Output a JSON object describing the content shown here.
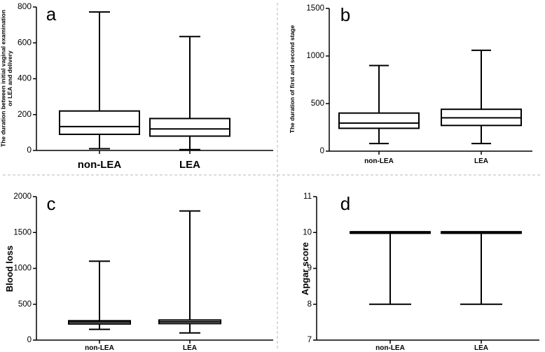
{
  "chart_data": [
    {
      "panel": "a",
      "type": "box",
      "ylabel": "The duration between initial vaginal examination or LEA and delivery",
      "ylabel_lines": [
        "The duration between initial vaginal examination",
        "or LEA and delivery"
      ],
      "ylim": [
        0,
        800
      ],
      "yticks": [
        0,
        200,
        400,
        600,
        800
      ],
      "categories": [
        "non-LEA",
        "LEA"
      ],
      "boxes": [
        {
          "name": "non-LEA",
          "min": 10,
          "q1": 90,
          "median": 133,
          "q3": 220,
          "max": 772
        },
        {
          "name": "LEA",
          "min": 5,
          "q1": 80,
          "median": 120,
          "q3": 178,
          "max": 635
        }
      ]
    },
    {
      "panel": "b",
      "type": "box",
      "ylabel": "The duration of first and second stage",
      "ylabel_lines": [
        "The duration of first and second stage"
      ],
      "ylim": [
        0,
        1500
      ],
      "yticks": [
        0,
        500,
        1000,
        1500
      ],
      "categories": [
        "non-LEA",
        "LEA"
      ],
      "boxes": [
        {
          "name": "non-LEA",
          "min": 80,
          "q1": 240,
          "median": 295,
          "q3": 400,
          "max": 900
        },
        {
          "name": "LEA",
          "min": 80,
          "q1": 270,
          "median": 350,
          "q3": 440,
          "max": 1060
        }
      ]
    },
    {
      "panel": "c",
      "type": "box",
      "ylabel": "Blood loss",
      "ylabel_lines": [
        "Blood loss"
      ],
      "ylim": [
        0,
        2000
      ],
      "yticks": [
        0,
        500,
        1000,
        1500,
        2000
      ],
      "categories": [
        "non-LEA",
        "LEA"
      ],
      "boxes": [
        {
          "name": "non-LEA",
          "min": 150,
          "q1": 225,
          "median": 250,
          "q3": 270,
          "max": 1100
        },
        {
          "name": "LEA",
          "min": 100,
          "q1": 230,
          "median": 255,
          "q3": 280,
          "max": 1800
        }
      ]
    },
    {
      "panel": "d",
      "type": "box",
      "ylabel": "Apgar score",
      "ylabel_lines": [
        "Apgar score"
      ],
      "ylim": [
        7,
        11
      ],
      "yticks": [
        7,
        8,
        9,
        10,
        11
      ],
      "categories": [
        "non-LEA",
        "LEA"
      ],
      "boxes": [
        {
          "name": "non-LEA",
          "min": 8,
          "q1": 10,
          "median": 10,
          "q3": 10,
          "max": 10
        },
        {
          "name": "LEA",
          "min": 8,
          "q1": 10,
          "median": 10,
          "q3": 10,
          "max": 10
        }
      ]
    }
  ]
}
